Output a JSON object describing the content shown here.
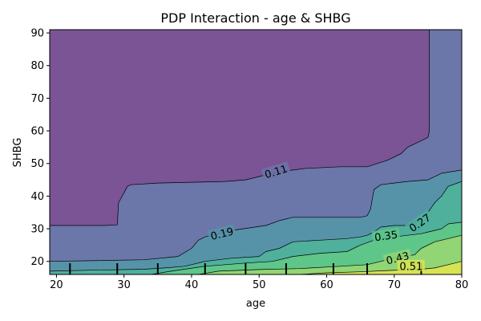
{
  "chart_data": {
    "type": "contour",
    "title": "PDP Interaction - age & SHBG",
    "xlabel": "age",
    "ylabel": "SHBG",
    "xlim": [
      19,
      80
    ],
    "ylim": [
      16,
      91
    ],
    "x_ticks": [
      20,
      30,
      40,
      50,
      60,
      70,
      80
    ],
    "y_ticks": [
      20,
      30,
      40,
      50,
      60,
      70,
      80,
      90
    ],
    "levels": [
      0.11,
      0.19,
      0.27,
      0.35,
      0.43,
      0.51
    ],
    "level_labels": [
      "0.11",
      "0.19",
      "0.27",
      "0.35",
      "0.43",
      "0.51"
    ],
    "band_colors": [
      "#7a5495",
      "#6b76a9",
      "#5793a8",
      "#4fb09c",
      "#5ec689",
      "#91d574",
      "#d6e454"
    ],
    "rug_ages": [
      22,
      29,
      35,
      42,
      48,
      54,
      61,
      66,
      74
    ],
    "contour_lines": [
      {
        "level": "0.11",
        "label_at": [
          52.5,
          47.5
        ],
        "label_angle": -17,
        "points": [
          [
            19,
            31
          ],
          [
            27,
            31
          ],
          [
            29,
            31.2
          ],
          [
            29.2,
            38
          ],
          [
            30,
            41
          ],
          [
            30.5,
            43
          ],
          [
            31,
            43.5
          ],
          [
            35,
            44
          ],
          [
            45,
            44.5
          ],
          [
            48,
            45
          ],
          [
            50,
            46
          ],
          [
            53,
            47.5
          ],
          [
            55,
            48
          ],
          [
            57,
            48.5
          ],
          [
            62,
            49
          ],
          [
            66,
            49
          ],
          [
            69,
            51
          ],
          [
            71,
            53
          ],
          [
            72,
            55
          ],
          [
            73,
            56
          ],
          [
            74,
            57
          ],
          [
            75,
            58
          ],
          [
            75.2,
            60
          ],
          [
            75.2,
            91
          ]
        ]
      },
      {
        "level": "0.19",
        "label_at": [
          44.5,
          28.5
        ],
        "label_angle": -14,
        "points": [
          [
            19,
            20
          ],
          [
            25,
            20.2
          ],
          [
            33,
            20.5
          ],
          [
            38,
            21.5
          ],
          [
            40,
            24
          ],
          [
            41,
            26.5
          ],
          [
            42,
            27.5
          ],
          [
            46,
            29.5
          ],
          [
            51,
            31
          ],
          [
            53,
            32.5
          ],
          [
            55,
            33.5
          ],
          [
            65,
            33.5
          ],
          [
            66,
            34
          ],
          [
            66.5,
            36
          ],
          [
            67,
            42
          ],
          [
            68,
            43.5
          ],
          [
            70,
            44
          ],
          [
            72,
            44.5
          ],
          [
            75,
            45
          ],
          [
            77,
            47
          ],
          [
            80,
            48
          ]
        ]
      },
      {
        "level": "0.27",
        "label_at": [
          73.8,
          31.8
        ],
        "label_angle": -35,
        "points": [
          [
            19,
            17
          ],
          [
            25,
            17.3
          ],
          [
            33,
            17.6
          ],
          [
            36,
            18
          ],
          [
            39,
            18.5
          ],
          [
            42,
            20
          ],
          [
            46,
            21
          ],
          [
            50,
            21.5
          ],
          [
            51,
            23
          ],
          [
            53,
            24
          ],
          [
            55,
            26
          ],
          [
            59,
            26.5
          ],
          [
            63,
            27
          ],
          [
            65,
            27.5
          ],
          [
            66,
            28
          ],
          [
            67,
            29
          ],
          [
            68,
            30.5
          ],
          [
            70,
            31
          ],
          [
            72,
            31
          ],
          [
            74,
            33
          ],
          [
            75,
            35
          ],
          [
            76,
            38
          ],
          [
            77,
            40
          ],
          [
            78,
            43
          ],
          [
            80,
            44.5
          ]
        ]
      },
      {
        "level": "0.35",
        "label_at": [
          68.8,
          27.8
        ],
        "label_angle": -8,
        "points": [
          [
            34,
            16
          ],
          [
            37,
            17
          ],
          [
            42,
            18.5
          ],
          [
            48,
            19.5
          ],
          [
            52,
            20
          ],
          [
            55,
            21.5
          ],
          [
            59,
            22.5
          ],
          [
            63,
            23
          ],
          [
            65,
            25
          ],
          [
            67,
            26.5
          ],
          [
            70,
            27.5
          ],
          [
            72,
            28
          ],
          [
            74,
            28.5
          ],
          [
            75,
            29
          ],
          [
            77,
            30
          ],
          [
            78,
            31.5
          ],
          [
            80,
            32
          ]
        ]
      },
      {
        "level": "0.43",
        "label_at": [
          70.5,
          21
        ],
        "label_angle": -14,
        "points": [
          [
            41,
            16
          ],
          [
            44,
            17
          ],
          [
            50,
            17.5
          ],
          [
            56,
            17.8
          ],
          [
            62,
            18.5
          ],
          [
            66,
            19
          ],
          [
            69,
            20.5
          ],
          [
            71,
            21.5
          ],
          [
            73,
            22
          ],
          [
            74,
            24
          ],
          [
            76,
            26
          ],
          [
            78,
            27
          ],
          [
            80,
            28
          ]
        ]
      },
      {
        "level": "0.51",
        "label_at": [
          72.5,
          18.5
        ],
        "label_angle": 0,
        "points": [
          [
            56,
            16
          ],
          [
            60,
            16.5
          ],
          [
            65,
            16.8
          ],
          [
            69,
            17.2
          ],
          [
            74,
            17.6
          ],
          [
            76,
            18
          ],
          [
            78,
            19
          ],
          [
            80,
            20
          ]
        ]
      }
    ]
  }
}
